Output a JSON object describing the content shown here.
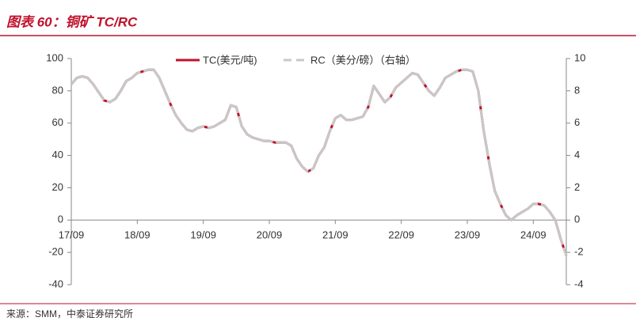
{
  "chart_data": {
    "type": "line",
    "title": "图表 60：铜矿 TC/RC",
    "source": "来源：SMM，中泰证券研究所",
    "categories": [
      "17/09",
      null,
      null,
      null,
      null,
      null,
      null,
      null,
      null,
      null,
      null,
      null,
      "18/09",
      null,
      null,
      null,
      null,
      null,
      null,
      null,
      null,
      null,
      null,
      null,
      "19/09",
      null,
      null,
      null,
      null,
      null,
      null,
      null,
      null,
      null,
      null,
      null,
      "20/09",
      null,
      null,
      null,
      null,
      null,
      null,
      null,
      null,
      null,
      null,
      null,
      "21/09",
      null,
      null,
      null,
      null,
      null,
      null,
      null,
      null,
      null,
      null,
      null,
      "22/09",
      null,
      null,
      null,
      null,
      null,
      null,
      null,
      null,
      null,
      null,
      null,
      "23/09",
      null,
      null,
      null,
      null,
      null,
      null,
      null,
      null,
      null,
      null,
      null,
      "24/09",
      null,
      null,
      null,
      null,
      null,
      null
    ],
    "series": [
      {
        "name": "TC(美元/吨)",
        "color": "#c0122c",
        "values": [
          84,
          88,
          89,
          88,
          84,
          79,
          74,
          73,
          75,
          80,
          86,
          88,
          91,
          92,
          93,
          93,
          88,
          80,
          72,
          65,
          60,
          56,
          55,
          57,
          58,
          57,
          58,
          60,
          62,
          71,
          70,
          58,
          53,
          51,
          50,
          49,
          49,
          48,
          48,
          48,
          46,
          38,
          33,
          30,
          32,
          40,
          45,
          55,
          63,
          65,
          62,
          62,
          63,
          64,
          70,
          83,
          78,
          73,
          76,
          82,
          85,
          88,
          91,
          90,
          85,
          80,
          77,
          82,
          88,
          90,
          92,
          93,
          93,
          92,
          80,
          55,
          35,
          18,
          10,
          3,
          0,
          3,
          5,
          7,
          10,
          10,
          9,
          5,
          0,
          -12,
          -22
        ]
      },
      {
        "name": "RC（美分/磅）（右轴）",
        "color": "#c8c8c8",
        "axis": "y2",
        "values": [
          8.4,
          8.8,
          8.9,
          8.8,
          8.4,
          7.9,
          7.4,
          7.3,
          7.5,
          8.0,
          8.6,
          8.8,
          9.1,
          9.2,
          9.3,
          9.3,
          8.8,
          8.0,
          7.2,
          6.5,
          6.0,
          5.6,
          5.5,
          5.7,
          5.8,
          5.7,
          5.8,
          6.0,
          6.2,
          7.1,
          7.0,
          5.8,
          5.3,
          5.1,
          5.0,
          4.9,
          4.9,
          4.8,
          4.8,
          4.8,
          4.6,
          3.8,
          3.3,
          3.0,
          3.2,
          4.0,
          4.5,
          5.5,
          6.3,
          6.5,
          6.2,
          6.2,
          6.3,
          6.4,
          7.0,
          8.3,
          7.8,
          7.3,
          7.6,
          8.2,
          8.5,
          8.8,
          9.1,
          9.0,
          8.5,
          8.0,
          7.7,
          8.2,
          8.8,
          9.0,
          9.2,
          9.3,
          9.3,
          9.2,
          8.0,
          5.5,
          3.5,
          1.8,
          1.0,
          0.3,
          0,
          0.3,
          0.5,
          0.7,
          1.0,
          1.0,
          0.9,
          0.5,
          0,
          -1.2,
          -2.2
        ]
      }
    ],
    "ylim": [
      -40,
      100
    ],
    "yticks": [
      -40,
      -20,
      0,
      20,
      40,
      60,
      80,
      100
    ],
    "y2lim": [
      -4,
      10
    ],
    "y2ticks": [
      -4,
      -2,
      0,
      2,
      4,
      6,
      8,
      10
    ],
    "grid": false,
    "legend": "top"
  }
}
